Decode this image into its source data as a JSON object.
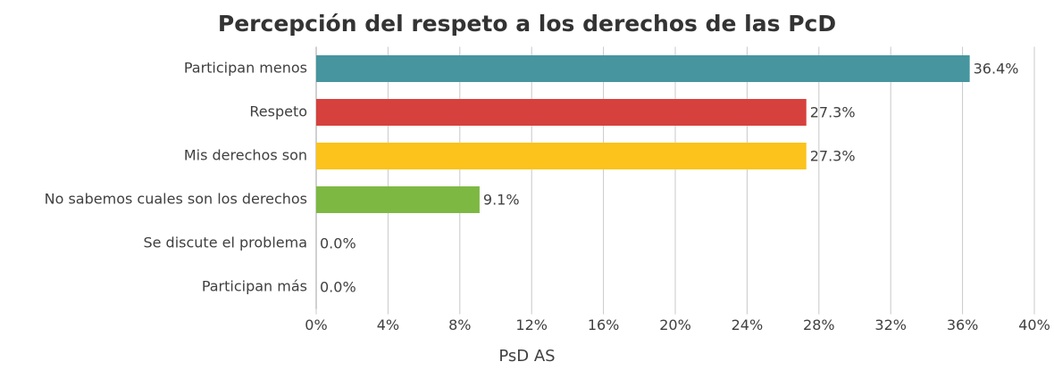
{
  "chart_data": {
    "type": "barh",
    "title": "Percepción del respeto a los derechos de las PcD",
    "categories": [
      "Participan menos",
      "Respeto",
      "Mis derechos son",
      "No sabemos cuales son los derechos",
      "Se discute el problema",
      "Participan más"
    ],
    "values": [
      36.4,
      27.3,
      27.3,
      9.1,
      0,
      0
    ],
    "value_labels": [
      "36.4%",
      "27.3%",
      "27.3%",
      "9.1%",
      "0.0%",
      "0.0%"
    ],
    "colors": [
      "#46959f",
      "#d7413d",
      "#fbc31b",
      "#7db843",
      "#7db843",
      "#7db843"
    ],
    "xlabel": "PsD AS",
    "xlim": [
      0,
      40
    ],
    "xticks": [
      {
        "value": 0,
        "label": "0%"
      },
      {
        "value": 4,
        "label": "4%"
      },
      {
        "value": 8,
        "label": "8%"
      },
      {
        "value": 12,
        "label": "12%"
      },
      {
        "value": 16,
        "label": "16%"
      },
      {
        "value": 20,
        "label": "20%"
      },
      {
        "value": 24,
        "label": "24%"
      },
      {
        "value": 28,
        "label": "28%"
      },
      {
        "value": 32,
        "label": "32%"
      },
      {
        "value": 36,
        "label": "36%"
      },
      {
        "value": 40,
        "label": "40%"
      }
    ],
    "grid": true
  }
}
